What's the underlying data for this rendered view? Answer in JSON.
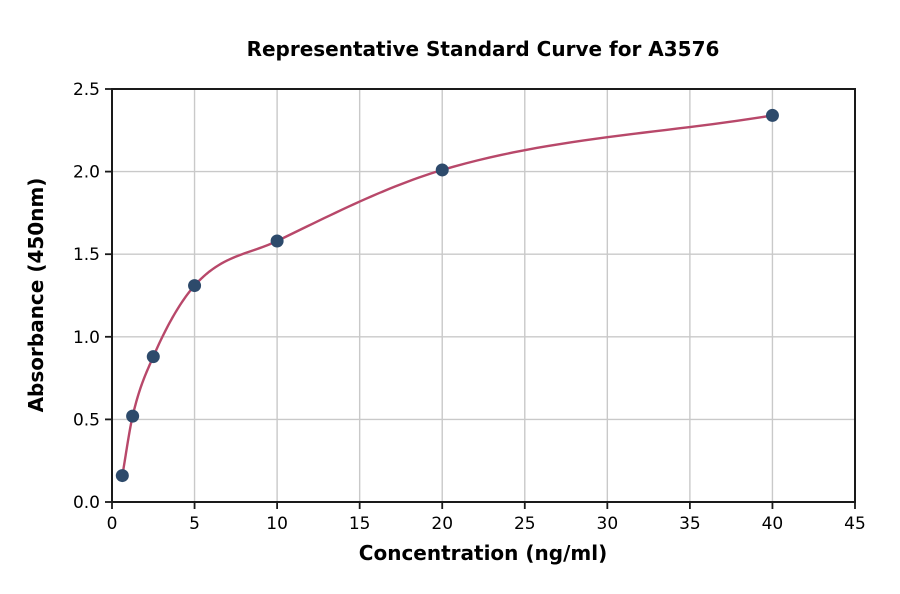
{
  "chart_data": {
    "type": "scatter",
    "title": "Representative Standard Curve for A3576",
    "xlabel": "Concentration (ng/ml)",
    "ylabel": "Absorbance (450nm)",
    "x": [
      0.625,
      1.25,
      2.5,
      5,
      10,
      20,
      40
    ],
    "y": [
      0.16,
      0.52,
      0.88,
      1.31,
      1.58,
      2.01,
      2.34
    ],
    "curve": "smooth saturation fit through data points, drawn from first to last point",
    "xlim": [
      0,
      45
    ],
    "ylim": [
      0,
      2.5
    ],
    "xticks": [
      0,
      5,
      10,
      15,
      20,
      25,
      30,
      35,
      40,
      45
    ],
    "yticks": [
      0.0,
      0.5,
      1.0,
      1.5,
      2.0,
      2.5
    ],
    "grid": true,
    "legend": "none",
    "colors": {
      "curve": "#b8486a",
      "marker": "#2d4a6b",
      "grid": "#c9c9c9",
      "spine": "#1a1a1a",
      "text": "#000000",
      "background": "#ffffff"
    }
  }
}
